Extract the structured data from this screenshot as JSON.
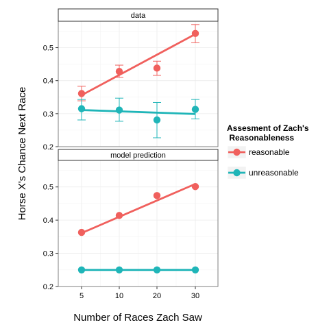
{
  "chart_data": {
    "type": "scatter",
    "xlabel": "Number of Races Zach Saw",
    "ylabel": "Horse X's Chance Next Race",
    "x_categories": [
      "5",
      "10",
      "20",
      "30"
    ],
    "y_ticks": [
      "0.2",
      "0.3",
      "0.4",
      "0.5"
    ],
    "ylim": [
      0.2,
      0.58
    ],
    "grid": true,
    "legend": {
      "title_line1": "Assesment of Zach's",
      "title_line2": " Reasonableness",
      "placement": "right",
      "entries": [
        "reasonable",
        "unreasonable"
      ]
    },
    "colors": {
      "reasonable": "#f0605d",
      "unreasonable": "#1fb5b8"
    },
    "panels": [
      {
        "strip": "data",
        "ylim": [
          0.2,
          0.58
        ],
        "series": [
          {
            "name": "reasonable",
            "values": [
              0.361,
              0.428,
              0.438,
              0.543
            ],
            "err_low": [
              0.339,
              0.41,
              0.416,
              0.515
            ],
            "err_high": [
              0.383,
              0.447,
              0.459,
              0.57
            ],
            "fit": [
              0.356,
              0.541
            ]
          },
          {
            "name": "unreasonable",
            "values": [
              0.315,
              0.311,
              0.281,
              0.313
            ],
            "err_low": [
              0.281,
              0.277,
              0.227,
              0.284
            ],
            "err_high": [
              0.343,
              0.347,
              0.334,
              0.343
            ],
            "fit": [
              0.311,
              0.299
            ]
          }
        ]
      },
      {
        "strip": "model prediction",
        "ylim": [
          0.2,
          0.58
        ],
        "series": [
          {
            "name": "reasonable",
            "values": [
              0.363,
              0.414,
              0.474,
              0.501
            ],
            "fit": [
              0.361,
              0.509
            ]
          },
          {
            "name": "unreasonable",
            "values": [
              0.25,
              0.25,
              0.25,
              0.25
            ],
            "fit": [
              0.25,
              0.25
            ]
          }
        ]
      }
    ]
  }
}
